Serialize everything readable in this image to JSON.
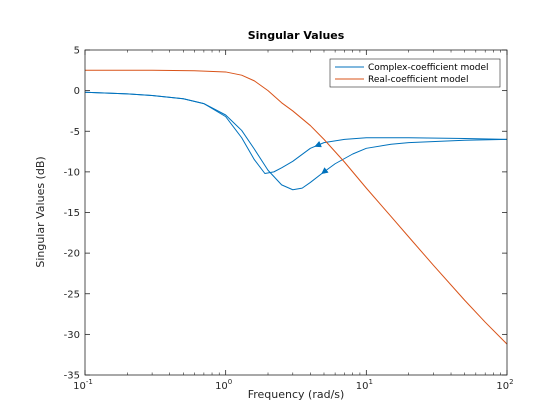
{
  "chart_data": {
    "type": "line",
    "title": "Singular Values",
    "xlabel": "Frequency (rad/s)",
    "ylabel": "Singular Values (dB)",
    "xscale": "log",
    "xlim": [
      0.1,
      100
    ],
    "ylim": [
      -35,
      5
    ],
    "grid": false,
    "legend_position": "top-right",
    "x_ticks": [
      {
        "base": "10",
        "exp": "-1",
        "value": 0.1
      },
      {
        "base": "10",
        "exp": "0",
        "value": 1
      },
      {
        "base": "10",
        "exp": "1",
        "value": 10
      },
      {
        "base": "10",
        "exp": "2",
        "value": 100
      }
    ],
    "y_ticks": [
      "5",
      "0",
      "-5",
      "-10",
      "-15",
      "-20",
      "-25",
      "-30",
      "-35"
    ],
    "y_tick_values": [
      5,
      0,
      -5,
      -10,
      -15,
      -20,
      -25,
      -30,
      -35
    ],
    "series": [
      {
        "name": "Complex-coefficient model",
        "color": "#0072BD",
        "x": [
          0.1,
          0.2,
          0.3,
          0.5,
          0.7,
          1.0,
          1.3,
          1.6,
          1.9,
          2.2,
          2.5,
          3.0,
          4.0,
          5.0,
          7.0,
          10,
          20,
          50,
          100
        ],
        "y": [
          -0.2,
          -0.4,
          -0.6,
          -1.0,
          -1.6,
          -3.2,
          -5.8,
          -8.5,
          -10.2,
          -10.0,
          -9.5,
          -8.7,
          -7.1,
          -6.4,
          -6.0,
          -5.8,
          -5.8,
          -5.9,
          -6.0
        ],
        "arrow_x": 4.5
      },
      {
        "name": "",
        "color": "#0072BD",
        "x": [
          0.1,
          0.2,
          0.3,
          0.5,
          0.7,
          1.0,
          1.3,
          1.6,
          2.0,
          2.5,
          3.0,
          3.5,
          4.0,
          5.0,
          6.0,
          8.0,
          10,
          15,
          20,
          50,
          100
        ],
        "y": [
          -0.2,
          -0.4,
          -0.6,
          -1.0,
          -1.6,
          -3.0,
          -4.9,
          -7.2,
          -9.8,
          -11.6,
          -12.2,
          -12.0,
          -11.3,
          -10.0,
          -9.0,
          -7.8,
          -7.1,
          -6.6,
          -6.4,
          -6.1,
          -6.0
        ],
        "arrow_x": 5.0
      },
      {
        "name": "Real-coefficient model",
        "color": "#D95319",
        "x": [
          0.1,
          0.3,
          0.6,
          1.0,
          1.3,
          1.6,
          2.0,
          2.5,
          3.0,
          4.0,
          5.0,
          7.0,
          10,
          15,
          20,
          30,
          50,
          70,
          100
        ],
        "y": [
          2.5,
          2.5,
          2.45,
          2.3,
          1.9,
          1.2,
          0.0,
          -1.5,
          -2.5,
          -4.3,
          -6.0,
          -8.8,
          -12.0,
          -15.5,
          -18.0,
          -21.5,
          -25.8,
          -28.5,
          -31.2
        ]
      }
    ]
  }
}
